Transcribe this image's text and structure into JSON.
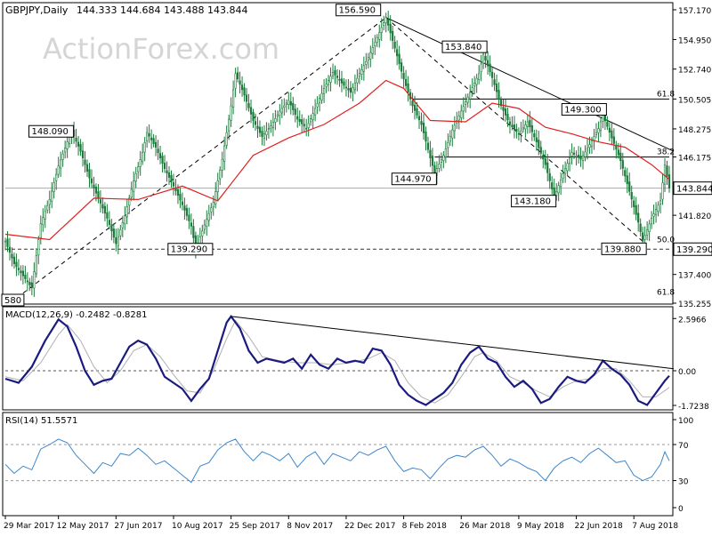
{
  "header": {
    "symbol_line": "GBPJPY,Daily",
    "ohlc": "144.333 144.684 143.488 143.844",
    "watermark": "ActionForex.com"
  },
  "chart_data": [
    {
      "type": "candlestick",
      "title": "GBPJPY,Daily",
      "series_name": "GBPJPY",
      "ylim": [
        135.255,
        157.17
      ],
      "y_ticks": [
        "157.170",
        "154.950",
        "152.740",
        "150.505",
        "148.275",
        "146.175",
        "143.844",
        "141.820",
        "139.290",
        "137.400",
        "135.255"
      ],
      "y_tick_values": [
        157.17,
        154.95,
        152.74,
        150.505,
        148.275,
        146.175,
        143.844,
        141.82,
        139.29,
        137.4,
        135.255
      ],
      "current_price": 143.844,
      "current_price_label": "143.844",
      "ma_color": "#e02020",
      "close_path": [
        [
          0,
          139.9
        ],
        [
          2,
          138.2
        ],
        [
          4,
          137.3
        ],
        [
          6,
          136.4
        ],
        [
          8,
          141.2
        ],
        [
          10,
          143.0
        ],
        [
          12,
          145.5
        ],
        [
          14,
          147.3
        ],
        [
          15,
          148.09
        ],
        [
          17,
          146.6
        ],
        [
          19,
          144.6
        ],
        [
          21,
          143.1
        ],
        [
          23,
          141.6
        ],
        [
          25,
          139.7
        ],
        [
          27,
          141.8
        ],
        [
          29,
          144.4
        ],
        [
          31,
          146.5
        ],
        [
          32,
          148.0
        ],
        [
          34,
          146.9
        ],
        [
          36,
          145.3
        ],
        [
          38,
          144.0
        ],
        [
          40,
          142.6
        ],
        [
          42,
          141.0
        ],
        [
          43,
          139.29
        ],
        [
          45,
          141.1
        ],
        [
          47,
          142.8
        ],
        [
          49,
          146.0
        ],
        [
          51,
          150.0
        ],
        [
          52,
          152.4
        ],
        [
          54,
          150.8
        ],
        [
          56,
          148.9
        ],
        [
          58,
          147.7
        ],
        [
          60,
          148.5
        ],
        [
          62,
          149.6
        ],
        [
          64,
          150.4
        ],
        [
          66,
          149.0
        ],
        [
          68,
          148.3
        ],
        [
          70,
          149.8
        ],
        [
          72,
          151.3
        ],
        [
          74,
          152.5
        ],
        [
          76,
          151.7
        ],
        [
          78,
          151.0
        ],
        [
          80,
          152.4
        ],
        [
          82,
          153.6
        ],
        [
          84,
          155.1
        ],
        [
          86,
          156.59
        ],
        [
          88,
          154.3
        ],
        [
          90,
          152.0
        ],
        [
          92,
          150.0
        ],
        [
          94,
          148.6
        ],
        [
          96,
          146.1
        ],
        [
          97,
          144.97
        ],
        [
          99,
          146.3
        ],
        [
          101,
          148.2
        ],
        [
          103,
          149.6
        ],
        [
          105,
          151.0
        ],
        [
          107,
          152.4
        ],
        [
          108,
          153.84
        ],
        [
          110,
          152.1
        ],
        [
          112,
          150.0
        ],
        [
          114,
          148.6
        ],
        [
          116,
          147.9
        ],
        [
          118,
          148.8
        ],
        [
          120,
          147.3
        ],
        [
          122,
          145.6
        ],
        [
          124,
          143.18
        ],
        [
          126,
          144.9
        ],
        [
          128,
          146.5
        ],
        [
          130,
          146.0
        ],
        [
          132,
          147.1
        ],
        [
          134,
          148.3
        ],
        [
          135,
          149.3
        ],
        [
          137,
          147.6
        ],
        [
          139,
          145.9
        ],
        [
          141,
          143.6
        ],
        [
          143,
          141.3
        ],
        [
          144,
          139.88
        ],
        [
          146,
          141.6
        ],
        [
          148,
          142.9
        ],
        [
          149,
          145.6
        ],
        [
          150,
          143.844
        ]
      ],
      "ma_path": [
        [
          0,
          140.4
        ],
        [
          10,
          140.0
        ],
        [
          20,
          143.1
        ],
        [
          30,
          143.0
        ],
        [
          40,
          144.0
        ],
        [
          48,
          142.9
        ],
        [
          56,
          146.3
        ],
        [
          64,
          147.6
        ],
        [
          72,
          148.6
        ],
        [
          80,
          150.2
        ],
        [
          86,
          151.9
        ],
        [
          90,
          151.3
        ],
        [
          96,
          148.9
        ],
        [
          104,
          148.8
        ],
        [
          110,
          150.2
        ],
        [
          116,
          149.8
        ],
        [
          122,
          148.4
        ],
        [
          128,
          147.9
        ],
        [
          134,
          147.3
        ],
        [
          140,
          146.9
        ],
        [
          146,
          145.6
        ],
        [
          150,
          144.5
        ]
      ],
      "price_labels": [
        {
          "text": "156.590",
          "x": 86,
          "y": 156.59
        },
        {
          "text": "153.840",
          "x": 108,
          "y": 153.84
        },
        {
          "text": "148.090",
          "x": 15,
          "y": 148.09
        },
        {
          "text": "149.300",
          "x": 135,
          "y": 149.3
        },
        {
          "text": "144.970",
          "x": 97,
          "y": 144.97
        },
        {
          "text": "143.180",
          "x": 124,
          "y": 143.18
        },
        {
          "text": "139.880",
          "x": 144,
          "y": 139.88
        },
        {
          "text": "139.290",
          "x": 43,
          "y": 139.29
        },
        {
          "text": "580",
          "x": 6,
          "y": 136.4
        }
      ],
      "fib_levels": [
        {
          "text": "61.8",
          "y": 150.505
        },
        {
          "text": "38.2",
          "y": 146.175
        },
        {
          "text": "50.0",
          "y": 139.6
        },
        {
          "text": "61.8",
          "y": 135.7
        }
      ],
      "support_level": 139.29,
      "support_label": "139.290",
      "trendlines": [
        {
          "from": [
            4,
            136.0
          ],
          "to": [
            86,
            156.59
          ],
          "style": "dashed"
        },
        {
          "from": [
            86,
            156.59
          ],
          "to": [
            144,
            139.88
          ],
          "style": "dashed"
        },
        {
          "from": [
            86,
            156.59
          ],
          "to": [
            151,
            146.6
          ],
          "style": "solid"
        }
      ],
      "horizontal_lines": [
        {
          "y": 150.505,
          "from_x": 92
        },
        {
          "y": 146.175,
          "from_x": 97
        }
      ]
    },
    {
      "type": "line",
      "title": "MACD(12,26,9) -0.2482 -0.8281",
      "series": [
        {
          "name": "MACD",
          "color": "#1a1a80"
        },
        {
          "name": "Signal",
          "color": "#b0b0b0"
        }
      ],
      "ylim": [
        -2.05,
        3.1
      ],
      "y_ticks": [
        "2.5966",
        "0.00",
        "-1.7238"
      ],
      "y_tick_values": [
        2.5966,
        0.0,
        -1.7238
      ],
      "macd": [
        [
          0,
          -0.4
        ],
        [
          3,
          -0.6
        ],
        [
          6,
          0.2
        ],
        [
          9,
          1.5
        ],
        [
          12,
          2.55
        ],
        [
          14,
          2.2
        ],
        [
          16,
          1.2
        ],
        [
          18,
          0.0
        ],
        [
          20,
          -0.7
        ],
        [
          22,
          -0.5
        ],
        [
          24,
          -0.4
        ],
        [
          26,
          0.4
        ],
        [
          28,
          1.2
        ],
        [
          30,
          1.5
        ],
        [
          32,
          1.3
        ],
        [
          34,
          0.6
        ],
        [
          36,
          -0.3
        ],
        [
          38,
          -0.6
        ],
        [
          40,
          -0.9
        ],
        [
          42,
          -1.5
        ],
        [
          44,
          -0.9
        ],
        [
          46,
          -0.4
        ],
        [
          48,
          1.0
        ],
        [
          50,
          2.4
        ],
        [
          51,
          2.7
        ],
        [
          53,
          2.1
        ],
        [
          55,
          1.0
        ],
        [
          57,
          0.4
        ],
        [
          59,
          0.6
        ],
        [
          61,
          0.5
        ],
        [
          63,
          0.4
        ],
        [
          65,
          0.6
        ],
        [
          67,
          0.1
        ],
        [
          69,
          0.8
        ],
        [
          71,
          0.3
        ],
        [
          73,
          0.1
        ],
        [
          75,
          0.6
        ],
        [
          77,
          0.4
        ],
        [
          79,
          0.5
        ],
        [
          81,
          0.4
        ],
        [
          83,
          1.1
        ],
        [
          85,
          1.0
        ],
        [
          87,
          0.3
        ],
        [
          89,
          -0.7
        ],
        [
          91,
          -1.2
        ],
        [
          93,
          -1.5
        ],
        [
          95,
          -1.7
        ],
        [
          97,
          -1.4
        ],
        [
          99,
          -1.1
        ],
        [
          101,
          -0.6
        ],
        [
          103,
          0.3
        ],
        [
          105,
          0.9
        ],
        [
          107,
          1.2
        ],
        [
          109,
          0.6
        ],
        [
          111,
          0.4
        ],
        [
          113,
          -0.3
        ],
        [
          115,
          -0.8
        ],
        [
          117,
          -0.5
        ],
        [
          119,
          -0.9
        ],
        [
          121,
          -1.6
        ],
        [
          123,
          -1.4
        ],
        [
          125,
          -0.8
        ],
        [
          127,
          -0.3
        ],
        [
          129,
          -0.5
        ],
        [
          131,
          -0.6
        ],
        [
          133,
          -0.2
        ],
        [
          135,
          0.5
        ],
        [
          137,
          0.1
        ],
        [
          139,
          -0.2
        ],
        [
          141,
          -0.7
        ],
        [
          143,
          -1.5
        ],
        [
          145,
          -1.7
        ],
        [
          147,
          -1.1
        ],
        [
          149,
          -0.5
        ],
        [
          150,
          -0.25
        ]
      ],
      "signal": [
        [
          0,
          -0.3
        ],
        [
          4,
          -0.5
        ],
        [
          8,
          0.4
        ],
        [
          12,
          1.8
        ],
        [
          14,
          2.3
        ],
        [
          17,
          1.5
        ],
        [
          20,
          0.2
        ],
        [
          23,
          -0.6
        ],
        [
          26,
          0.0
        ],
        [
          29,
          1.0
        ],
        [
          32,
          1.3
        ],
        [
          35,
          0.7
        ],
        [
          38,
          -0.2
        ],
        [
          41,
          -1.0
        ],
        [
          44,
          -1.1
        ],
        [
          47,
          0.0
        ],
        [
          50,
          1.6
        ],
        [
          52,
          2.5
        ],
        [
          55,
          1.7
        ],
        [
          58,
          0.7
        ],
        [
          62,
          0.5
        ],
        [
          66,
          0.4
        ],
        [
          70,
          0.4
        ],
        [
          74,
          0.3
        ],
        [
          78,
          0.4
        ],
        [
          82,
          0.6
        ],
        [
          85,
          0.9
        ],
        [
          88,
          0.5
        ],
        [
          91,
          -0.6
        ],
        [
          94,
          -1.3
        ],
        [
          97,
          -1.6
        ],
        [
          100,
          -1.2
        ],
        [
          103,
          -0.3
        ],
        [
          106,
          0.7
        ],
        [
          108,
          0.9
        ],
        [
          111,
          0.5
        ],
        [
          114,
          -0.3
        ],
        [
          117,
          -0.6
        ],
        [
          120,
          -1.0
        ],
        [
          123,
          -1.3
        ],
        [
          126,
          -0.8
        ],
        [
          129,
          -0.5
        ],
        [
          132,
          -0.4
        ],
        [
          135,
          0.1
        ],
        [
          138,
          0.1
        ],
        [
          141,
          -0.5
        ],
        [
          144,
          -1.3
        ],
        [
          147,
          -1.3
        ],
        [
          150,
          -0.83
        ]
      ],
      "trendline": {
        "from": [
          51,
          2.7
        ],
        "to": [
          151,
          0.1
        ]
      }
    },
    {
      "type": "line",
      "title": "RSI(14) 51.5571",
      "series": [
        {
          "name": "RSI",
          "color": "#3b86cc"
        }
      ],
      "ylim": [
        0,
        100
      ],
      "y_ticks": [
        "100",
        "70",
        "30",
        "0"
      ],
      "y_tick_values": [
        100,
        70,
        30,
        0
      ],
      "x_tick_labels": [
        "29 Mar 2017",
        "12 May 2017",
        "27 Jun 2017",
        "10 Aug 2017",
        "25 Sep 2017",
        "8 Nov 2017",
        "22 Dec 2017",
        "8 Feb 2018",
        "26 Mar 2018",
        "9 May 2018",
        "22 Jun 2018",
        "7 Aug 2018"
      ],
      "x_tick_positions": [
        0,
        12,
        25,
        38,
        51,
        64,
        77,
        90,
        103,
        116,
        129,
        142
      ],
      "rsi": [
        [
          0,
          48
        ],
        [
          2,
          38
        ],
        [
          4,
          46
        ],
        [
          6,
          42
        ],
        [
          8,
          65
        ],
        [
          10,
          70
        ],
        [
          12,
          76
        ],
        [
          14,
          72
        ],
        [
          16,
          58
        ],
        [
          18,
          48
        ],
        [
          20,
          38
        ],
        [
          22,
          50
        ],
        [
          24,
          46
        ],
        [
          26,
          60
        ],
        [
          28,
          58
        ],
        [
          30,
          66
        ],
        [
          32,
          58
        ],
        [
          34,
          48
        ],
        [
          36,
          52
        ],
        [
          38,
          44
        ],
        [
          40,
          36
        ],
        [
          42,
          28
        ],
        [
          44,
          46
        ],
        [
          46,
          50
        ],
        [
          48,
          64
        ],
        [
          50,
          72
        ],
        [
          52,
          76
        ],
        [
          54,
          62
        ],
        [
          56,
          52
        ],
        [
          58,
          62
        ],
        [
          60,
          58
        ],
        [
          62,
          52
        ],
        [
          64,
          60
        ],
        [
          66,
          45
        ],
        [
          68,
          56
        ],
        [
          70,
          62
        ],
        [
          72,
          48
        ],
        [
          74,
          60
        ],
        [
          76,
          56
        ],
        [
          78,
          52
        ],
        [
          80,
          62
        ],
        [
          82,
          58
        ],
        [
          84,
          64
        ],
        [
          86,
          68
        ],
        [
          88,
          52
        ],
        [
          90,
          40
        ],
        [
          92,
          44
        ],
        [
          94,
          42
        ],
        [
          96,
          32
        ],
        [
          98,
          44
        ],
        [
          100,
          54
        ],
        [
          102,
          58
        ],
        [
          104,
          56
        ],
        [
          106,
          64
        ],
        [
          108,
          68
        ],
        [
          110,
          58
        ],
        [
          112,
          46
        ],
        [
          114,
          54
        ],
        [
          116,
          50
        ],
        [
          118,
          44
        ],
        [
          120,
          40
        ],
        [
          122,
          30
        ],
        [
          124,
          44
        ],
        [
          126,
          52
        ],
        [
          128,
          56
        ],
        [
          130,
          50
        ],
        [
          132,
          60
        ],
        [
          134,
          66
        ],
        [
          136,
          58
        ],
        [
          138,
          50
        ],
        [
          140,
          52
        ],
        [
          142,
          36
        ],
        [
          144,
          30
        ],
        [
          146,
          34
        ],
        [
          148,
          48
        ],
        [
          149,
          62
        ],
        [
          150,
          52
        ]
      ]
    }
  ]
}
